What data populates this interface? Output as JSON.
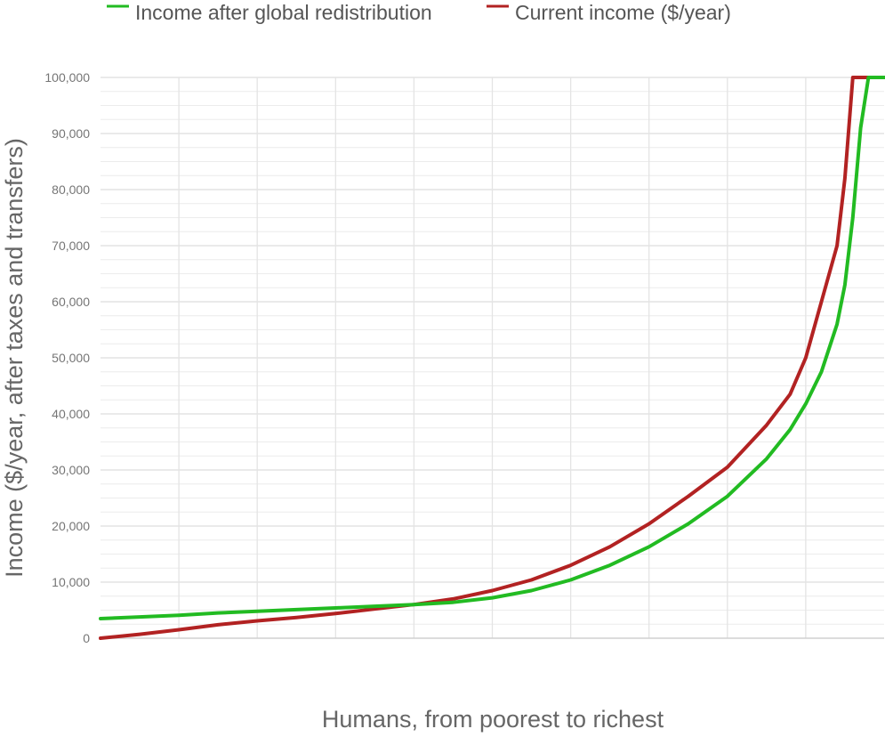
{
  "chart_data": {
    "type": "line",
    "title": "",
    "xlabel": "Humans, from poorest to richest",
    "ylabel": "Income ($/year, after taxes and transfers)",
    "xlim": [
      0,
      100
    ],
    "ylim": [
      0,
      100000
    ],
    "yticks": [
      0,
      10000,
      20000,
      30000,
      40000,
      50000,
      60000,
      70000,
      80000,
      90000,
      100000
    ],
    "ytick_labels": [
      "0",
      "10,000",
      "20,000",
      "30,000",
      "40,000",
      "50,000",
      "60,000",
      "70,000",
      "80,000",
      "90,000",
      "100,000"
    ],
    "x_gridlines": [
      10,
      20,
      30,
      40,
      50,
      60,
      70,
      80,
      90
    ],
    "grid": true,
    "legend_position": "top",
    "series": [
      {
        "name": "Income after global redistribution",
        "color": "#22bb22",
        "x": [
          0,
          5,
          10,
          15,
          20,
          25,
          30,
          35,
          40,
          45,
          50,
          55,
          60,
          65,
          70,
          75,
          80,
          85,
          88,
          90,
          92,
          94,
          95,
          96,
          97,
          98,
          98.5,
          99,
          99.5,
          100
        ],
        "y": [
          3500,
          3800,
          4100,
          4500,
          4800,
          5100,
          5400,
          5700,
          6000,
          6400,
          7200,
          8500,
          10400,
          13000,
          16300,
          20400,
          25300,
          32000,
          37200,
          41800,
          47500,
          56000,
          63000,
          75000,
          91000,
          100000,
          100000,
          100000,
          100000,
          100000
        ]
      },
      {
        "name": "Current income ($/year)",
        "color": "#b22222",
        "x": [
          0,
          5,
          10,
          15,
          20,
          25,
          30,
          35,
          40,
          45,
          50,
          55,
          60,
          65,
          70,
          75,
          80,
          85,
          88,
          90,
          92,
          94,
          95,
          96,
          97,
          98,
          98.5,
          99,
          99.5,
          100
        ],
        "y": [
          0,
          700,
          1500,
          2400,
          3100,
          3700,
          4400,
          5200,
          6000,
          7000,
          8500,
          10400,
          13000,
          16300,
          20400,
          25300,
          30500,
          38000,
          43500,
          50000,
          60000,
          70000,
          82000,
          100000,
          100000,
          100000,
          100000,
          100000,
          100000,
          100000
        ]
      }
    ]
  }
}
